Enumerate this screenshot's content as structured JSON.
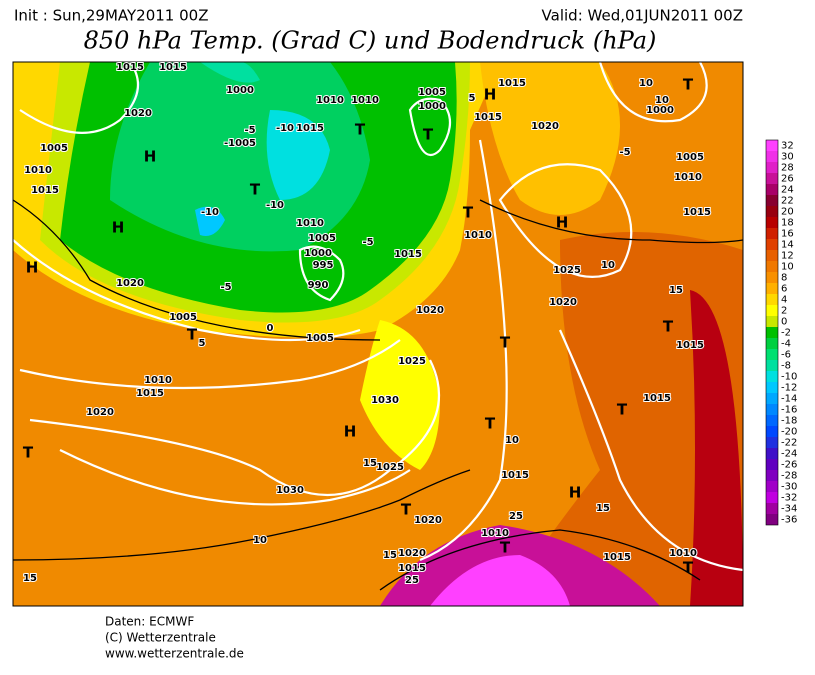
{
  "header": {
    "init": "Init : Sun,29MAY2011 00Z",
    "valid": "Valid: Wed,01JUN2011 00Z",
    "title": "850 hPa Temp. (Grad C) und Bodendruck (hPa)"
  },
  "colorbar": {
    "ticks": [
      32,
      30,
      28,
      26,
      24,
      22,
      20,
      18,
      16,
      14,
      12,
      10,
      8,
      6,
      4,
      2,
      0,
      -2,
      -4,
      -6,
      -8,
      -10,
      -12,
      -14,
      -16,
      -18,
      -20,
      -22,
      -24,
      -26,
      -28,
      -30,
      -32,
      -34,
      -36
    ],
    "colors": [
      "#ff40ff",
      "#f030e8",
      "#e020c8",
      "#c81098",
      "#a80068",
      "#880030",
      "#980010",
      "#b80000",
      "#d02000",
      "#e04000",
      "#e86000",
      "#f07800",
      "#f89000",
      "#ffb000",
      "#ffd800",
      "#ffff00",
      "#c8e800",
      "#00c000",
      "#00d040",
      "#00e070",
      "#00e0a0",
      "#00e0e0",
      "#00c8ff",
      "#00a8ff",
      "#0088ff",
      "#0068ff",
      "#0048ff",
      "#2030e0",
      "#4010c8",
      "#6000c0",
      "#8000c0",
      "#a000c8",
      "#c000e0",
      "#a000a0",
      "#800080"
    ]
  },
  "labels": [
    "1015",
    "1015",
    "1020",
    "1005",
    "1010",
    "1015",
    "H",
    "H",
    "H",
    "1020",
    "-5",
    "0",
    "1005",
    "T",
    "5",
    "1005",
    "1010",
    "1015",
    "1020",
    "T",
    "H",
    "1030",
    "1025",
    "1020",
    "1015",
    "1005",
    "1000",
    "995",
    "990",
    "1010",
    "-10",
    "-10",
    "-10",
    "1015",
    "1010",
    "1010",
    "1000",
    "-1005",
    "-5",
    "T",
    "T",
    "T",
    "1005",
    "1000",
    "5",
    "H",
    "1015",
    "1015",
    "1020",
    "-5",
    "1005",
    "1010",
    "1015",
    "10",
    "10",
    "1000",
    "T",
    "H",
    "1025",
    "10",
    "1020",
    "15",
    "T",
    "1015",
    "T",
    "T",
    "1015",
    "T",
    "10",
    "1015",
    "H",
    "15",
    "T",
    "1020",
    "25",
    "1010",
    "T",
    "1015",
    "1010",
    "T",
    "1020",
    "1015",
    "15",
    "25",
    "1030",
    "10",
    "15",
    "1025",
    "15",
    "1010",
    "T",
    "-5"
  ],
  "footer": [
    "Daten: ECMWF",
    "(C) Wetterzentrale",
    "www.wetterzentrale.de"
  ]
}
